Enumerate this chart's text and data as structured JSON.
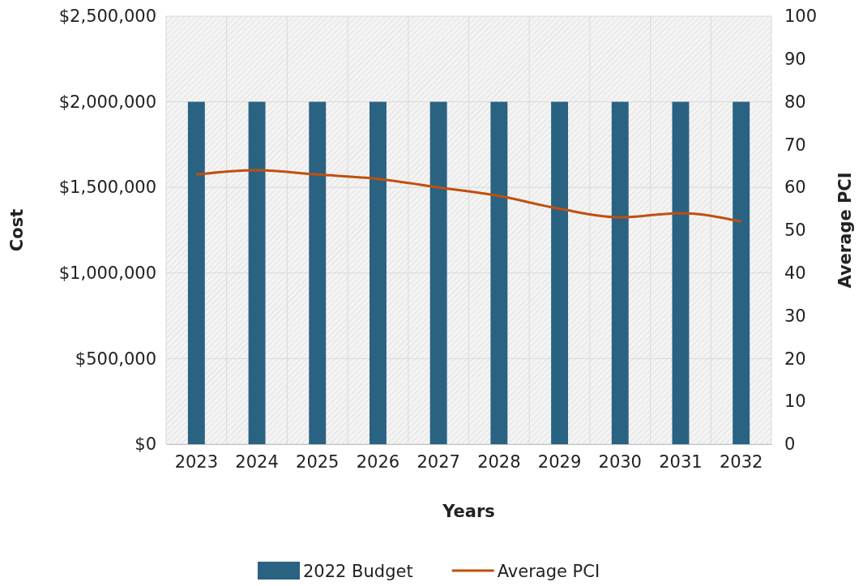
{
  "chart_data": {
    "type": "bar",
    "xlabel": "Years",
    "ylabel": "Cost",
    "y2label": "Average PCI",
    "categories": [
      "2023",
      "2024",
      "2025",
      "2026",
      "2027",
      "2028",
      "2029",
      "2030",
      "2031",
      "2032"
    ],
    "series": [
      {
        "name": "2022 Budget",
        "color": "#2a6282",
        "values": [
          2000000,
          2000000,
          2000000,
          2000000,
          2000000,
          2000000,
          2000000,
          2000000,
          2000000,
          2000000
        ]
      },
      {
        "name": "Average PCI",
        "type": "line",
        "axis": "y2",
        "color": "#c0500e",
        "values": [
          63,
          64,
          63,
          62,
          60,
          58,
          55,
          53,
          54,
          52
        ]
      }
    ],
    "ylim": [
      0,
      2500000
    ],
    "yticks": [
      {
        "value": 0,
        "label": "$0"
      },
      {
        "value": 500000,
        "label": "$500,000"
      },
      {
        "value": 1000000,
        "label": "$1,000,000"
      },
      {
        "value": 1500000,
        "label": "$1,500,000"
      },
      {
        "value": 2000000,
        "label": "$2,000,000"
      },
      {
        "value": 2500000,
        "label": "$2,500,000"
      }
    ],
    "y2lim": [
      0,
      100
    ],
    "y2ticks": [
      0,
      10,
      20,
      30,
      40,
      50,
      60,
      70,
      80,
      90,
      100
    ],
    "grid": true,
    "legend": "bottom",
    "marker": "none",
    "line_style": "solid"
  }
}
